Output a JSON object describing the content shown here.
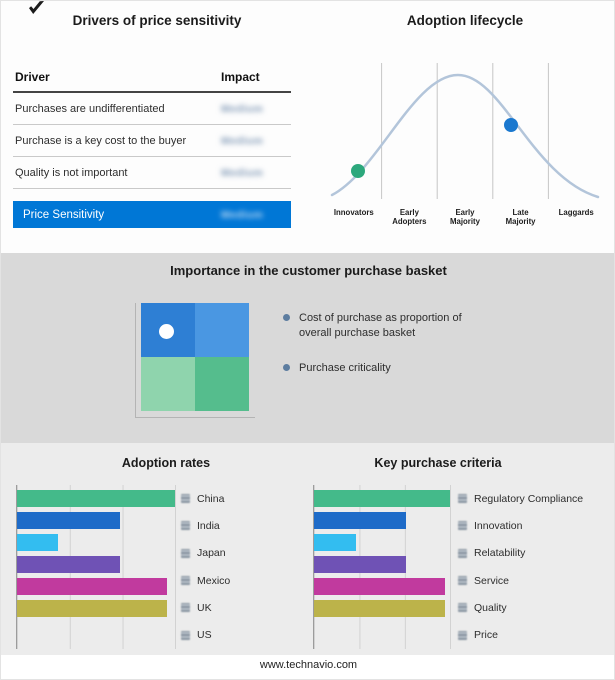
{
  "drivers": {
    "title": "Drivers of price sensitivity",
    "columns": {
      "driver": "Driver",
      "impact": "Impact"
    },
    "rows": [
      {
        "driver": "Purchases are undifferentiated",
        "impact": "Medium"
      },
      {
        "driver": "Purchase is a key cost to the buyer",
        "impact": "Medium"
      },
      {
        "driver": "Quality is not important",
        "impact": "Medium"
      }
    ],
    "impact_values_redacted": true,
    "highlight": {
      "label": "Price Sensitivity",
      "impact": "Medium",
      "color": "#0077d6"
    }
  },
  "lifecycle": {
    "title": "Adoption lifecycle",
    "stages": [
      "Innovators",
      "Early Adopters",
      "Early Majority",
      "Late Majority",
      "Laggards"
    ],
    "curve_color": "#b3c5da",
    "markers": [
      {
        "name": "early-stage-marker",
        "stage": "Innovators",
        "color": "#2ca87c"
      },
      {
        "name": "late-stage-marker",
        "stage": "Late Majority",
        "color": "#1a78cf"
      }
    ]
  },
  "basket": {
    "title": "Importance in the customer purchase basket",
    "bullets": [
      "Cost of purchase as proportion of overall purchase basket",
      "Purchase criticality"
    ],
    "quadrant_colors": [
      "#2e7fd4",
      "#4a97e2",
      "#8fd4ad",
      "#55bd8d"
    ]
  },
  "chart_data": [
    {
      "type": "bar",
      "orientation": "horizontal",
      "title": "Adoption rates",
      "categories": [
        "China",
        "India",
        "Japan",
        "Mexico",
        "UK",
        "US"
      ],
      "values": [
        100,
        65,
        26,
        65,
        95,
        95
      ],
      "xlim": [
        0,
        100
      ],
      "grid": true,
      "legend_position": "right",
      "colors": [
        "#44ba8a",
        "#1e6bc8",
        "#33bdf0",
        "#6f52b5",
        "#c13a9e",
        "#bcb34a"
      ]
    },
    {
      "type": "bar",
      "orientation": "horizontal",
      "title": "Key purchase criteria",
      "categories": [
        "Regulatory Compliance",
        "Innovation",
        "Relatability",
        "Service",
        "Quality",
        "Price"
      ],
      "values": [
        100,
        68,
        31,
        68,
        96,
        96
      ],
      "xlim": [
        0,
        100
      ],
      "grid": true,
      "legend_position": "right",
      "colors": [
        "#44ba8a",
        "#1e6bc8",
        "#33bdf0",
        "#6f52b5",
        "#c13a9e",
        "#bcb34a"
      ]
    }
  ],
  "footer": {
    "url": "www.technavio.com"
  }
}
